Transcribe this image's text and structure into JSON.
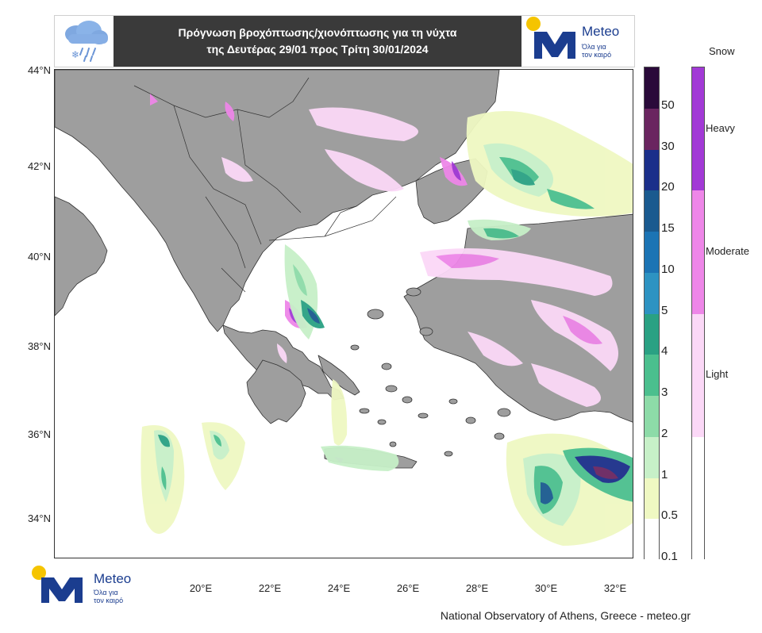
{
  "header": {
    "title_line1": "Πρόγνωση βροχόπτωσης/χιονόπτωσης για τη νύχτα",
    "title_line2": "της Δευτέρας 29/01 προς Τρίτη 30/01/2024",
    "weather_icon": "rain-snow-cloud-icon"
  },
  "logo": {
    "name": "Meteo",
    "tagline_line1": "Όλα για",
    "tagline_line2": "τον καιρό"
  },
  "map": {
    "lat_labels": [
      "44°N",
      "42°N",
      "40°N",
      "38°N",
      "36°N",
      "34°N"
    ],
    "lon_labels": [
      "20°E",
      "22°E",
      "24°E",
      "26°E",
      "28°E",
      "30°E",
      "32°E"
    ],
    "land_color": "#9e9e9e",
    "sea_color": "#ffffff"
  },
  "rain_scale": {
    "labels": [
      "50",
      "30",
      "20",
      "15",
      "10",
      "5",
      "4",
      "3",
      "2",
      "1",
      "0.5",
      "0.1"
    ],
    "colors": [
      "#2a0a3a",
      "#6a2560",
      "#1b2f8a",
      "#1a5a8f",
      "#1c74b4",
      "#2d93c2",
      "#2aa183",
      "#4bbf8e",
      "#8ddba8",
      "#c7f0c8",
      "#eff8c2",
      "#ffffff"
    ]
  },
  "snow_scale": {
    "title": "Snow",
    "levels": [
      {
        "label": "Heavy",
        "color": "#a239d6"
      },
      {
        "label": "Moderate",
        "color": "#ee86e8"
      },
      {
        "label": "Light",
        "color": "#fbd8f7"
      },
      {
        "label": "",
        "color": "#ffffff"
      }
    ]
  },
  "footer": {
    "credit": "National Observatory of Athens, Greece - meteo.gr"
  }
}
